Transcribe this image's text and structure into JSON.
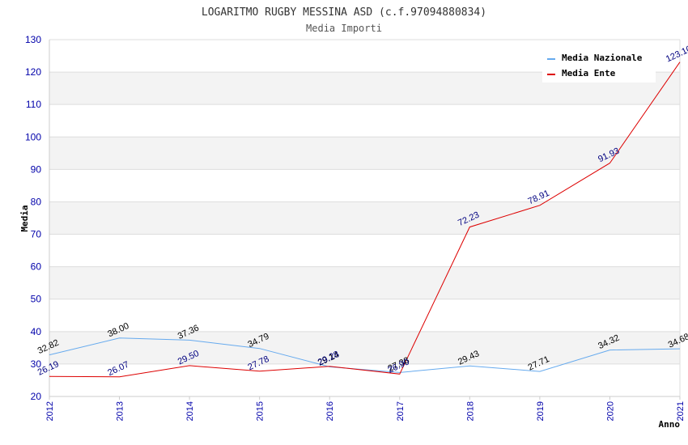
{
  "chart_data": {
    "type": "line",
    "title": "LOGARITMO RUGBY MESSINA ASD (c.f.97094880834)",
    "subtitle": "Media Importi",
    "xlabel": "Anno",
    "ylabel": "Media",
    "ylim": [
      20,
      130
    ],
    "yticks": [
      20,
      30,
      40,
      50,
      60,
      70,
      80,
      90,
      100,
      110,
      120,
      130
    ],
    "x": [
      "2012",
      "2013",
      "2014",
      "2015",
      "2016",
      "2017",
      "2018",
      "2019",
      "2020",
      "2021"
    ],
    "grid": true,
    "legend_position": "top-right",
    "series": [
      {
        "name": "Media Nazionale",
        "color": "#66aaee",
        "label_color": "#000000",
        "values": [
          32.82,
          38.0,
          37.36,
          34.79,
          29.14,
          27.38,
          29.43,
          27.71,
          34.32,
          34.68
        ],
        "labels": [
          "32.82",
          "38.00",
          "37.36",
          "34.79",
          "29.14",
          "27.38",
          "29.43",
          "27.71",
          "34.32",
          "34.68"
        ]
      },
      {
        "name": "Media Ente",
        "color": "#dd0000",
        "label_color": "#000080",
        "values": [
          26.19,
          26.07,
          29.5,
          27.78,
          29.28,
          26.9,
          72.23,
          78.91,
          91.93,
          123.1
        ],
        "labels": [
          "26.19",
          "26.07",
          "29.50",
          "27.78",
          "29.28",
          "26.90",
          "72.23",
          "78.91",
          "91.93",
          "123.10"
        ]
      }
    ]
  }
}
